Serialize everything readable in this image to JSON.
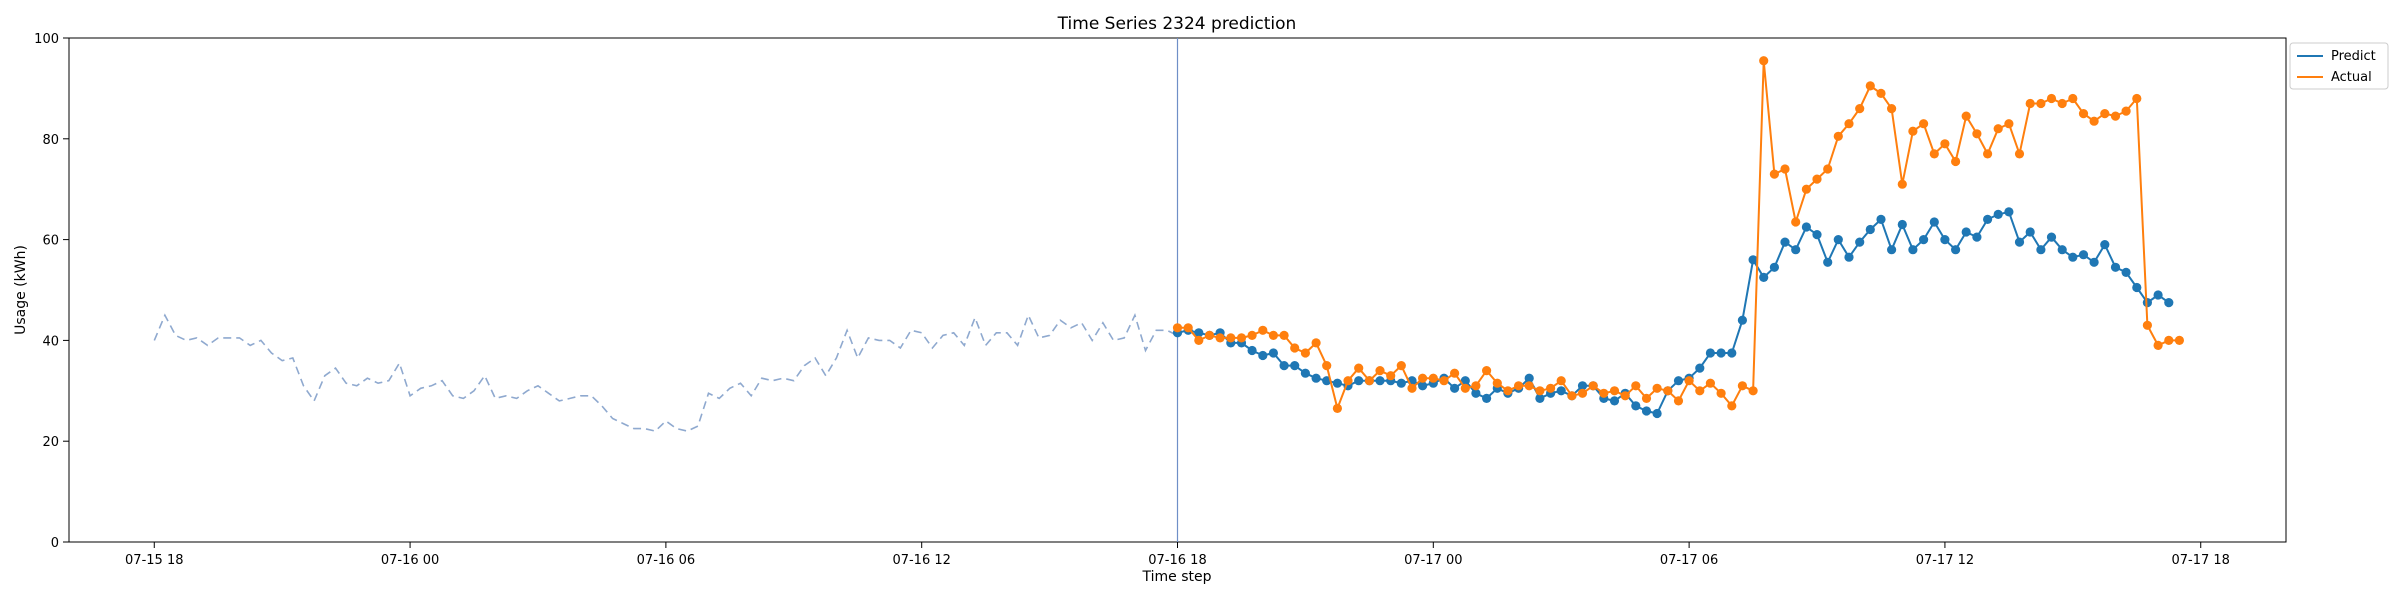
{
  "chart_data": {
    "type": "line",
    "title": "Time Series 2324 prediction",
    "xlabel": "Time step",
    "ylabel": "Usage (kWh)",
    "ylim": [
      0,
      100
    ],
    "y_ticks": [
      0,
      20,
      40,
      60,
      80,
      100
    ],
    "xlim": [
      "2023-07-15 16:00",
      "2023-07-17 20:00"
    ],
    "x_ticks": [
      {
        "t": "2023-07-15 18:00",
        "label": "07-15 18"
      },
      {
        "t": "2023-07-16 00:00",
        "label": "07-16 00"
      },
      {
        "t": "2023-07-16 06:00",
        "label": "07-16 06"
      },
      {
        "t": "2023-07-16 12:00",
        "label": "07-16 12"
      },
      {
        "t": "2023-07-16 18:00",
        "label": "07-16 18"
      },
      {
        "t": "2023-07-17 00:00",
        "label": "07-17 00"
      },
      {
        "t": "2023-07-17 06:00",
        "label": "07-17 06"
      },
      {
        "t": "2023-07-17 12:00",
        "label": "07-17 12"
      },
      {
        "t": "2023-07-17 18:00",
        "label": "07-17 18"
      }
    ],
    "forecast_start": "2023-07-16 18:00",
    "grid": false,
    "legend_position": "top-right",
    "series": [
      {
        "key": "history",
        "style": "dashed",
        "color": "#8fa9cf",
        "start": "2023-07-15 18:00",
        "step_minutes": 15,
        "values": [
          40,
          45,
          41,
          40,
          40.5,
          39,
          40.5,
          40.5,
          40.5,
          39,
          40,
          37.5,
          36,
          36.5,
          31,
          28,
          33,
          34.5,
          31.5,
          31,
          32.5,
          31.5,
          32,
          35.5,
          29,
          30.5,
          31,
          32,
          29,
          28.5,
          30,
          33,
          28.5,
          29,
          28.5,
          30,
          31,
          29.5,
          28,
          28.5,
          29,
          29,
          27,
          24.5,
          23.5,
          22.5,
          22.5,
          22,
          24,
          22.5,
          22,
          23,
          29.5,
          28.5,
          30.5,
          31.5,
          29,
          32.5,
          32,
          32.5,
          32,
          35,
          36.5,
          33,
          36.5,
          42,
          36.5,
          40.5,
          40,
          40,
          38.5,
          42,
          41.5,
          38.5,
          41,
          41.5,
          39,
          44.5,
          39,
          41.5,
          41.5,
          39,
          45,
          40.5,
          41,
          44,
          42.5,
          43.5,
          40,
          43.5,
          40,
          40.5,
          45,
          38,
          42,
          42,
          41
        ]
      },
      {
        "key": "predict",
        "name": "Predict",
        "style": "solid-markers",
        "color": "#1f77b4",
        "start": "2023-07-16 18:00",
        "step_minutes": 15,
        "values": [
          41.5,
          42,
          41.5,
          41,
          41.5,
          39.5,
          39.5,
          38,
          37,
          37.5,
          35,
          35,
          33.5,
          32.5,
          32,
          31.5,
          31,
          32,
          32,
          32,
          32,
          31.5,
          32,
          31,
          31.5,
          32.5,
          30.5,
          32,
          29.5,
          28.5,
          30.5,
          29.5,
          30.5,
          32.5,
          28.5,
          29.5,
          30,
          29,
          31,
          31,
          28.5,
          28,
          29.5,
          27,
          26,
          25.5,
          30,
          32,
          32.5,
          34.5,
          37.5,
          37.5,
          37.5,
          44,
          56,
          52.5,
          54.5,
          59.5,
          58,
          62.5,
          61,
          55.5,
          60,
          56.5,
          59.5,
          62,
          64,
          58,
          63,
          58,
          60,
          63.5,
          60,
          58,
          61.5,
          60.5,
          64,
          65,
          65.5,
          59.5,
          61.5,
          58,
          60.5,
          58,
          56.5,
          57,
          55.5,
          59,
          54.5,
          53.5,
          50.5,
          47.5,
          49,
          47.5
        ]
      },
      {
        "key": "actual",
        "name": "Actual",
        "style": "solid-markers",
        "color": "#ff7f0e",
        "start": "2023-07-16 18:00",
        "step_minutes": 15,
        "values": [
          42.5,
          42.5,
          40,
          41,
          40.5,
          40.5,
          40.5,
          41,
          42,
          41,
          41,
          38.5,
          37.5,
          39.5,
          35,
          26.5,
          32,
          34.5,
          32,
          34,
          33,
          35,
          30.5,
          32.5,
          32.5,
          32,
          33.5,
          30.5,
          31,
          34,
          31.5,
          30,
          31,
          31,
          30,
          30.5,
          32,
          29,
          29.5,
          31,
          29.5,
          30,
          29,
          31,
          28.5,
          30.5,
          30,
          28,
          32,
          30,
          31.5,
          29.5,
          27,
          31,
          30,
          95.5,
          73,
          74,
          63.5,
          70,
          72,
          74,
          80.5,
          83,
          86,
          90.5,
          89,
          86,
          71,
          81.5,
          83,
          77,
          79,
          75.5,
          84.5,
          81,
          77,
          82,
          83,
          77,
          87,
          87,
          88,
          87,
          88,
          85,
          83.5,
          85,
          84.5,
          85.5,
          88,
          43,
          39,
          40,
          40
        ]
      }
    ]
  }
}
